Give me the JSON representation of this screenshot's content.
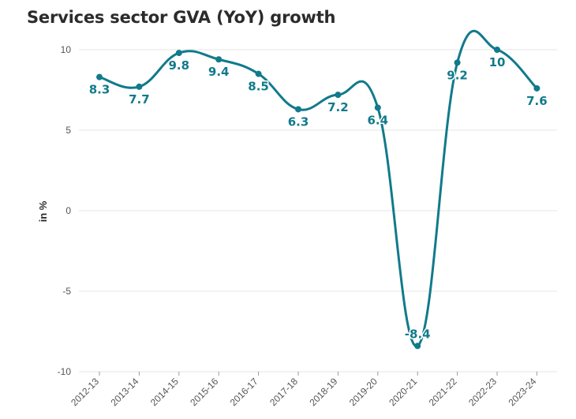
{
  "chart_data": {
    "type": "line",
    "title": "Services sector GVA (YoY) growth",
    "xlabel": "",
    "ylabel": "in %",
    "ylim": [
      -10,
      10
    ],
    "yticks": [
      "10",
      "5",
      "0",
      "-5",
      "-10"
    ],
    "grid": true,
    "categories": [
      "2012-13",
      "2013-14",
      "2014-15",
      "2015-16",
      "2016-17",
      "2017-18",
      "2018-19",
      "2019-20",
      "2020-21",
      "2021-22",
      "2022-23",
      "2023-24"
    ],
    "series": [
      {
        "values": [
          8.3,
          7.7,
          9.8,
          9.4,
          8.5,
          6.3,
          7.2,
          6.4,
          -8.4,
          9.2,
          10,
          7.6
        ],
        "labels": [
          "8.3",
          "7.7",
          "9.8",
          "9.4",
          "8.5",
          "6.3",
          "7.2",
          "6.4",
          "-8.4",
          "9.2",
          "10",
          "7.6"
        ],
        "color": "#117a8b"
      }
    ]
  }
}
